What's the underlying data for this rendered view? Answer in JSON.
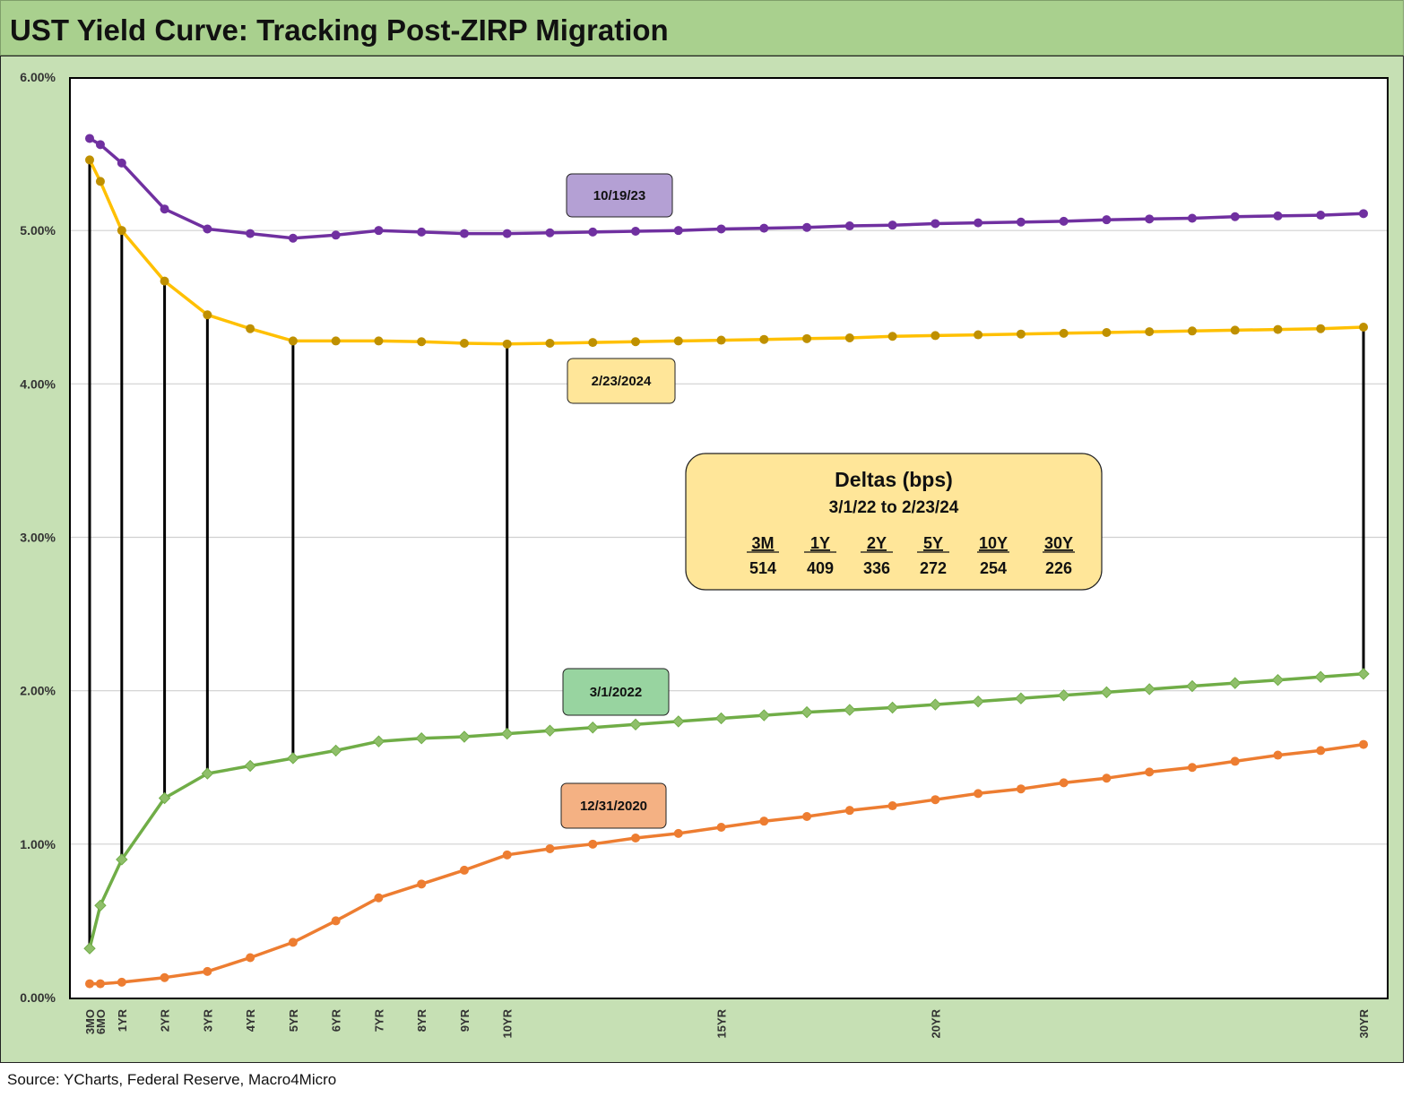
{
  "header": {
    "title": "UST Yield Curve: Tracking Post-ZIRP Migration"
  },
  "footer": {
    "source": "Source: YCharts, Federal Reserve, Macro4Micro"
  },
  "chart_data": {
    "type": "line",
    "title": "UST Yield Curve: Tracking Post-ZIRP Migration",
    "xlabel": "",
    "ylabel": "",
    "ylim": [
      0,
      6
    ],
    "y_ticks": [
      "0.00%",
      "1.00%",
      "2.00%",
      "3.00%",
      "4.00%",
      "5.00%",
      "6.00%"
    ],
    "grid": "horizontal",
    "x": [
      0.25,
      0.5,
      1,
      2,
      3,
      4,
      5,
      6,
      7,
      8,
      9,
      10,
      11,
      12,
      13,
      14,
      15,
      16,
      17,
      18,
      19,
      20,
      21,
      22,
      23,
      24,
      25,
      26,
      27,
      28,
      29,
      30
    ],
    "x_tick_labels": [
      {
        "x": 0.25,
        "label": "3MO"
      },
      {
        "x": 0.5,
        "label": "6MO"
      },
      {
        "x": 1,
        "label": "1YR"
      },
      {
        "x": 2,
        "label": "2YR"
      },
      {
        "x": 3,
        "label": "3YR"
      },
      {
        "x": 4,
        "label": "4YR"
      },
      {
        "x": 5,
        "label": "5YR"
      },
      {
        "x": 6,
        "label": "6YR"
      },
      {
        "x": 7,
        "label": "7YR"
      },
      {
        "x": 8,
        "label": "8YR"
      },
      {
        "x": 9,
        "label": "9YR"
      },
      {
        "x": 10,
        "label": "10YR"
      },
      {
        "x": 15,
        "label": "15YR"
      },
      {
        "x": 20,
        "label": "20YR"
      },
      {
        "x": 30,
        "label": "30YR"
      }
    ],
    "series": [
      {
        "name": "10/19/23",
        "color": "#7030a0",
        "marker": "circle",
        "label_box_color": "#b4a0d4",
        "values": [
          5.6,
          5.56,
          5.44,
          5.14,
          5.01,
          4.98,
          4.95,
          4.97,
          5.0,
          4.99,
          4.98,
          4.98,
          4.985,
          4.99,
          4.995,
          5.0,
          5.01,
          5.015,
          5.02,
          5.03,
          5.035,
          5.045,
          5.05,
          5.055,
          5.06,
          5.07,
          5.075,
          5.08,
          5.09,
          5.095,
          5.1,
          5.11
        ]
      },
      {
        "name": "2/23/2024",
        "color": "#ffc000",
        "marker": "circle",
        "marker_color": "#bf9000",
        "label_box_color": "#ffe699",
        "values": [
          5.46,
          5.32,
          5.0,
          4.67,
          4.45,
          4.36,
          4.28,
          4.28,
          4.28,
          4.275,
          4.265,
          4.26,
          4.265,
          4.27,
          4.275,
          4.28,
          4.285,
          4.29,
          4.295,
          4.3,
          4.31,
          4.315,
          4.32,
          4.325,
          4.33,
          4.335,
          4.34,
          4.345,
          4.35,
          4.355,
          4.36,
          4.37
        ]
      },
      {
        "name": "3/1/2022",
        "color": "#70ad47",
        "marker": "diamond",
        "marker_color": "#8fbf6a",
        "label_box_color": "#98d4a0",
        "values": [
          0.32,
          0.6,
          0.9,
          1.3,
          1.46,
          1.51,
          1.56,
          1.61,
          1.67,
          1.69,
          1.7,
          1.72,
          1.74,
          1.76,
          1.78,
          1.8,
          1.82,
          1.84,
          1.86,
          1.875,
          1.89,
          1.91,
          1.93,
          1.95,
          1.97,
          1.99,
          2.01,
          2.03,
          2.05,
          2.07,
          2.09,
          2.11
        ]
      },
      {
        "name": "12/31/2020",
        "color": "#ed7d31",
        "marker": "circle",
        "label_box_color": "#f4b183",
        "values": [
          0.09,
          0.09,
          0.1,
          0.13,
          0.17,
          0.26,
          0.36,
          0.5,
          0.65,
          0.74,
          0.83,
          0.93,
          0.97,
          1.0,
          1.04,
          1.07,
          1.11,
          1.15,
          1.18,
          1.22,
          1.25,
          1.29,
          1.33,
          1.36,
          1.4,
          1.43,
          1.47,
          1.5,
          1.54,
          1.58,
          1.61,
          1.65
        ]
      }
    ],
    "drop_lines": {
      "from_series": "2/23/2024",
      "to_series": "3/1/2022",
      "at_x": [
        0.25,
        1,
        2,
        3,
        5,
        10,
        30
      ],
      "color": "#000000"
    },
    "annotation_table": {
      "title": "Deltas (bps)",
      "subtitle": "3/1/22 to 2/23/24",
      "headers": [
        "3M",
        "1Y",
        "2Y",
        "5Y",
        "10Y",
        "30Y"
      ],
      "values": [
        "514",
        "409",
        "336",
        "272",
        "254",
        "226"
      ],
      "box_color": "#ffe699"
    }
  }
}
